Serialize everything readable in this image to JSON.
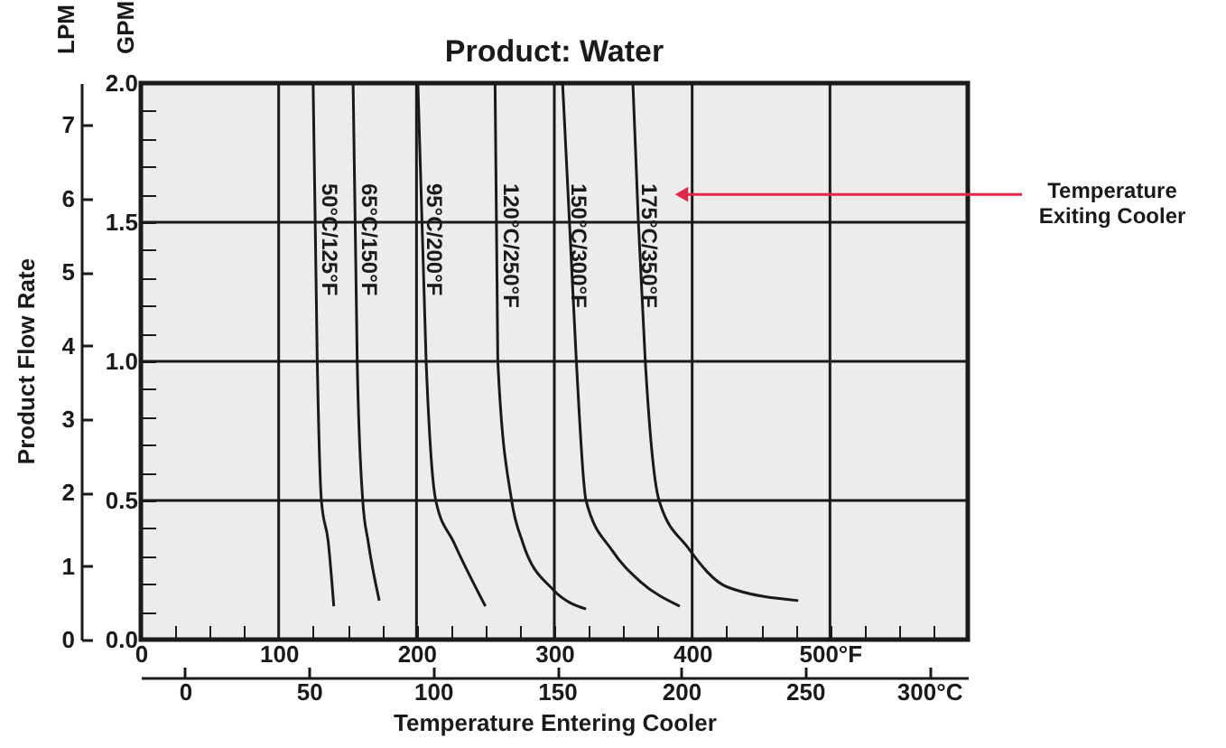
{
  "chart_data": {
    "type": "line",
    "title": "Product: Water",
    "xlabel": "Temperature Entering Cooler",
    "ylabel": "GPM",
    "y2label": "LPM",
    "annotations": [
      "Product Flow Rate",
      "Temperature\nExiting Cooler"
    ],
    "xlim": [
      0,
      600
    ],
    "xticks": [
      0,
      {
        "value": 25,
        "label": null
      },
      {
        "value": 50,
        "label": null
      },
      {
        "value": 75,
        "label": null
      },
      100,
      {
        "value": 125,
        "label": null
      },
      {
        "value": 150,
        "label": null
      },
      {
        "value": 175,
        "label": null
      },
      200,
      {
        "value": 225,
        "label": null
      },
      {
        "value": 250,
        "label": null
      },
      {
        "value": 275,
        "label": null
      },
      300,
      {
        "value": 325,
        "label": null
      },
      {
        "value": 350,
        "label": null
      },
      {
        "value": 375,
        "label": null
      },
      400,
      {
        "value": 425,
        "label": null
      },
      {
        "value": 450,
        "label": null
      },
      {
        "value": 475,
        "label": null
      },
      {
        "value": 500,
        "label": "500°F"
      },
      {
        "value": 525,
        "label": null
      },
      {
        "value": 550,
        "label": null
      },
      {
        "value": 575,
        "label": null
      }
    ],
    "x2lim": [
      -17.8,
      315.6
    ],
    "x2ticks": [
      0,
      50,
      100,
      150,
      200,
      250,
      {
        "value": 300,
        "label": "300°C"
      }
    ],
    "ylim": [
      0,
      2
    ],
    "yticks": [
      {
        "value": 0,
        "label": "0.0"
      },
      {
        "value": 0.1,
        "label": null
      },
      {
        "value": 0.2,
        "label": null
      },
      {
        "value": 0.3,
        "label": null
      },
      {
        "value": 0.4,
        "label": null
      },
      0.5,
      {
        "value": 0.6,
        "label": null
      },
      {
        "value": 0.7,
        "label": null
      },
      {
        "value": 0.8,
        "label": null
      },
      {
        "value": 0.9,
        "label": null
      },
      {
        "value": 1,
        "label": "1.0"
      },
      {
        "value": 1.1,
        "label": null
      },
      {
        "value": 1.2,
        "label": null
      },
      {
        "value": 1.3,
        "label": null
      },
      {
        "value": 1.4,
        "label": null
      },
      1.5,
      {
        "value": 1.6,
        "label": null
      },
      {
        "value": 1.7,
        "label": null
      },
      {
        "value": 1.8,
        "label": null
      },
      {
        "value": 1.9,
        "label": null
      },
      {
        "value": 2,
        "label": "2.0"
      }
    ],
    "y2lim": [
      0,
      7.57
    ],
    "y2ticks": [
      0,
      1,
      2,
      3,
      4,
      5,
      6,
      7
    ],
    "grid": true,
    "marker": "none",
    "line_style": "solid",
    "series": [
      {
        "name": "50°C/125°F",
        "color": "#1a1a1a",
        "x": [
          125,
          128,
          131,
          136,
          140
        ],
        "values": [
          2.0,
          1.0,
          0.5,
          0.35,
          0.12
        ]
      },
      {
        "name": "65°C/150°F",
        "color": "#1a1a1a",
        "x": [
          154,
          157,
          161,
          165,
          173
        ],
        "values": [
          2.0,
          1.0,
          0.5,
          0.35,
          0.14
        ]
      },
      {
        "name": "95°C/200°F",
        "color": "#1a1a1a",
        "x": [
          201,
          207,
          214,
          227,
          250
        ],
        "values": [
          2.0,
          1.0,
          0.5,
          0.35,
          0.12
        ]
      },
      {
        "name": "120°C/250°F",
        "color": "#1a1a1a",
        "x": [
          257,
          259,
          269,
          277,
          299,
          323
        ],
        "values": [
          2.0,
          1.0,
          0.5,
          0.35,
          0.18,
          0.11
        ]
      },
      {
        "name": "150°C/300°F",
        "color": "#1a1a1a",
        "x": [
          306,
          311,
          316,
          323,
          342,
          362,
          391
        ],
        "values": [
          2.0,
          1.5,
          1.0,
          0.5,
          0.32,
          0.21,
          0.12
        ]
      },
      {
        "name": "175°C/350°F",
        "color": "#1a1a1a",
        "x": [
          357,
          361,
          366,
          376,
          397,
          425,
          477
        ],
        "values": [
          2.0,
          1.5,
          1.0,
          0.5,
          0.33,
          0.19,
          0.14
        ]
      }
    ]
  }
}
